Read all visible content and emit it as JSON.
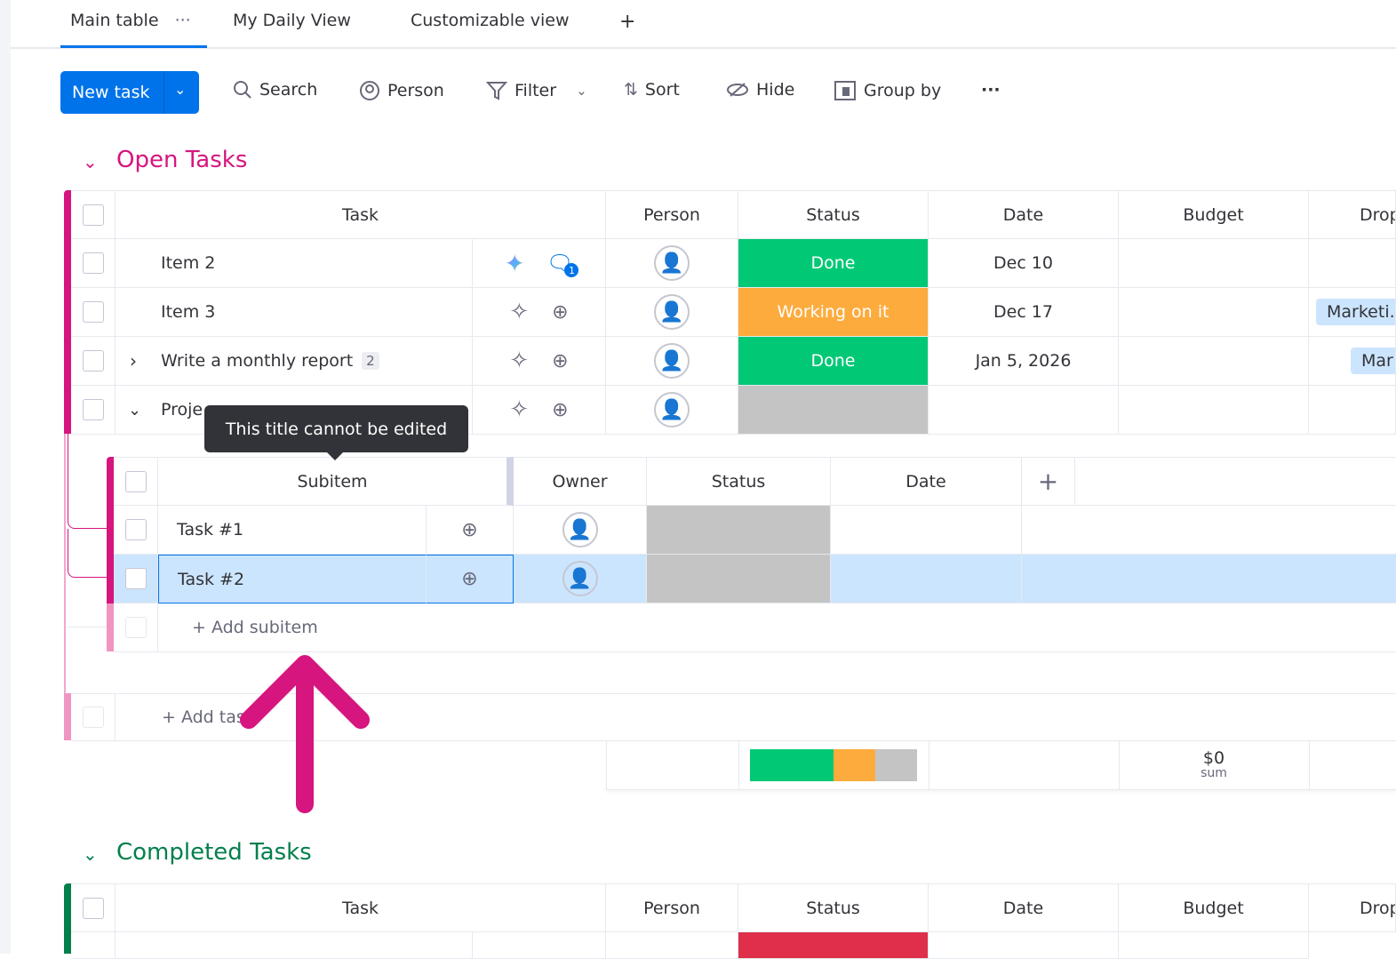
{
  "tabs": [
    {
      "label": "Main table",
      "active": true
    },
    {
      "label": "My Daily View"
    },
    {
      "label": "Customizable view"
    }
  ],
  "tab_more": "···",
  "tab_add": "+",
  "toolbar": {
    "new_task": "New task",
    "search": "Search",
    "person": "Person",
    "filter": "Filter",
    "sort": "Sort",
    "hide": "Hide",
    "group_by": "Group by",
    "more": "···"
  },
  "colors": {
    "accent": "#0073ea",
    "open_group": "#d6157f",
    "completed_group": "#037f4c",
    "done": "#00c875",
    "working": "#fdab3d",
    "empty": "#c4c4c4",
    "stuck": "#df2f4a",
    "selected_row": "#cce5ff"
  },
  "open_group": {
    "title": "Open Tasks",
    "columns": [
      "Task",
      "Person",
      "Status",
      "Date",
      "Budget",
      "Drop"
    ],
    "rows": [
      {
        "task": "Item 2",
        "status": "Done",
        "date": "Dec 10",
        "dropdown": ""
      },
      {
        "task": "Item 3",
        "status": "Working on it",
        "date": "Dec 17",
        "dropdown": "Marketi."
      },
      {
        "task": "Write a monthly report",
        "subitems": "2",
        "status": "Done",
        "date": "Jan 5, 2026",
        "dropdown": "Mar"
      },
      {
        "task": "Proje",
        "status": "",
        "date": "",
        "dropdown": ""
      }
    ],
    "comment_badge": "1",
    "subitems": {
      "columns": [
        "Subitem",
        "Owner",
        "Status",
        "Date"
      ],
      "rows": [
        {
          "name": "Task #1"
        },
        {
          "name": "Task #2",
          "selected": true
        }
      ],
      "add_label": "+ Add subitem"
    },
    "add_task": "+ Add tas",
    "summary": {
      "status_distribution": {
        "done": 2,
        "working": 1,
        "empty": 1
      },
      "budget_value": "$0",
      "budget_label": "sum"
    }
  },
  "tooltip": "This title cannot be edited",
  "completed_group": {
    "title": "Completed Tasks",
    "columns": [
      "Task",
      "Person",
      "Status",
      "Date",
      "Budget",
      "Drop"
    ]
  }
}
